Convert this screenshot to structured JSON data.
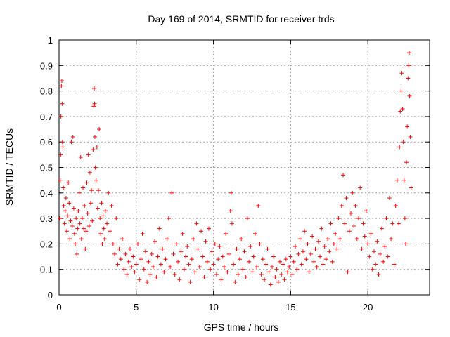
{
  "chart_data": {
    "type": "scatter",
    "title": "Day 169 of 2014, SRMTID for receiver trds",
    "xlabel": "GPS time / hours",
    "ylabel": "SRMTID / TECUs",
    "xlim": [
      0,
      24
    ],
    "ylim": [
      0,
      1
    ],
    "grid": true,
    "marker": "+",
    "color": "#ff0000",
    "x_ticks": [
      "0",
      "5",
      "10",
      "15",
      "20"
    ],
    "x_tick_values": [
      0,
      5,
      10,
      15,
      20
    ],
    "y_ticks": [
      "0",
      "0.1",
      "0.2",
      "0.3",
      "0.4",
      "0.5",
      "0.6",
      "0.7",
      "0.8",
      "0.9",
      "1"
    ],
    "y_tick_values": [
      0,
      0.1,
      0.2,
      0.3,
      0.4,
      0.5,
      0.6,
      0.7,
      0.8,
      0.9,
      1.0
    ],
    "series": [
      {
        "name": "SRMTID",
        "points": [
          [
            0.05,
            0.3
          ],
          [
            0.08,
            0.45
          ],
          [
            0.1,
            0.55
          ],
          [
            0.12,
            0.7
          ],
          [
            0.15,
            0.82
          ],
          [
            0.18,
            0.84
          ],
          [
            0.2,
            0.75
          ],
          [
            0.22,
            0.6
          ],
          [
            0.25,
            0.58
          ],
          [
            0.28,
            0.42
          ],
          [
            0.3,
            0.35
          ],
          [
            0.35,
            0.28
          ],
          [
            0.4,
            0.33
          ],
          [
            0.45,
            0.38
          ],
          [
            0.5,
            0.25
          ],
          [
            0.55,
            0.31
          ],
          [
            0.6,
            0.44
          ],
          [
            0.65,
            0.36
          ],
          [
            0.7,
            0.22
          ],
          [
            0.75,
            0.29
          ],
          [
            0.8,
            0.6
          ],
          [
            0.85,
            0.27
          ],
          [
            0.9,
            0.62
          ],
          [
            0.95,
            0.34
          ],
          [
            1.0,
            0.24
          ],
          [
            1.05,
            0.2
          ],
          [
            1.1,
            0.3
          ],
          [
            1.15,
            0.16
          ],
          [
            1.2,
            0.26
          ],
          [
            1.25,
            0.33
          ],
          [
            1.3,
            0.4
          ],
          [
            1.35,
            0.28
          ],
          [
            1.4,
            0.54
          ],
          [
            1.45,
            0.22
          ],
          [
            1.5,
            0.3
          ],
          [
            1.55,
            0.42
          ],
          [
            1.6,
            0.26
          ],
          [
            1.65,
            0.35
          ],
          [
            1.7,
            0.18
          ],
          [
            1.75,
            0.25
          ],
          [
            1.8,
            0.44
          ],
          [
            1.85,
            0.32
          ],
          [
            1.9,
            0.55
          ],
          [
            1.95,
            0.27
          ],
          [
            2.0,
            0.48
          ],
          [
            2.05,
            0.36
          ],
          [
            2.1,
            0.41
          ],
          [
            2.15,
            0.29
          ],
          [
            2.2,
            0.57
          ],
          [
            2.25,
            0.74
          ],
          [
            2.28,
            0.81
          ],
          [
            2.3,
            0.75
          ],
          [
            2.32,
            0.62
          ],
          [
            2.35,
            0.5
          ],
          [
            2.4,
            0.45
          ],
          [
            2.45,
            0.58
          ],
          [
            2.5,
            0.34
          ],
          [
            2.55,
            0.41
          ],
          [
            2.6,
            0.65
          ],
          [
            2.65,
            0.3
          ],
          [
            2.7,
            0.24
          ],
          [
            2.75,
            0.36
          ],
          [
            2.8,
            0.2
          ],
          [
            2.85,
            0.31
          ],
          [
            2.9,
            0.26
          ],
          [
            2.95,
            0.22
          ],
          [
            3.0,
            0.33
          ],
          [
            3.1,
            0.28
          ],
          [
            3.2,
            0.4
          ],
          [
            3.3,
            0.25
          ],
          [
            3.4,
            0.35
          ],
          [
            3.5,
            0.2
          ],
          [
            3.6,
            0.16
          ],
          [
            3.7,
            0.3
          ],
          [
            3.8,
            0.12
          ],
          [
            3.9,
            0.18
          ],
          [
            4.0,
            0.14
          ],
          [
            4.1,
            0.22
          ],
          [
            4.2,
            0.1
          ],
          [
            4.3,
            0.16
          ],
          [
            4.4,
            0.08
          ],
          [
            4.5,
            0.13
          ],
          [
            4.6,
            0.18
          ],
          [
            4.7,
            0.11
          ],
          [
            4.8,
            0.15
          ],
          [
            4.9,
            0.09
          ],
          [
            5.0,
            0.12
          ],
          [
            5.1,
            0.2
          ],
          [
            5.2,
            0.06
          ],
          [
            5.3,
            0.14
          ],
          [
            5.4,
            0.24
          ],
          [
            5.5,
            0.1
          ],
          [
            5.6,
            0.17
          ],
          [
            5.7,
            0.05
          ],
          [
            5.8,
            0.13
          ],
          [
            5.9,
            0.08
          ],
          [
            6.0,
            0.16
          ],
          [
            6.1,
            0.11
          ],
          [
            6.2,
            0.21
          ],
          [
            6.3,
            0.07
          ],
          [
            6.4,
            0.15
          ],
          [
            6.5,
            0.26
          ],
          [
            6.6,
            0.12
          ],
          [
            6.7,
            0.18
          ],
          [
            6.8,
            0.09
          ],
          [
            6.9,
            0.14
          ],
          [
            7.0,
            0.22
          ],
          [
            7.1,
            0.3
          ],
          [
            7.2,
            0.11
          ],
          [
            7.3,
            0.4
          ],
          [
            7.4,
            0.16
          ],
          [
            7.5,
            0.08
          ],
          [
            7.6,
            0.2
          ],
          [
            7.7,
            0.13
          ],
          [
            7.8,
            0.06
          ],
          [
            7.9,
            0.17
          ],
          [
            8.0,
            0.24
          ],
          [
            8.1,
            0.1
          ],
          [
            8.2,
            0.15
          ],
          [
            8.3,
            0.19
          ],
          [
            8.4,
            0.12
          ],
          [
            8.5,
            0.05
          ],
          [
            8.6,
            0.14
          ],
          [
            8.7,
            0.22
          ],
          [
            8.8,
            0.09
          ],
          [
            8.9,
            0.28
          ],
          [
            9.0,
            0.18
          ],
          [
            9.1,
            0.11
          ],
          [
            9.2,
            0.25
          ],
          [
            9.3,
            0.15
          ],
          [
            9.4,
            0.07
          ],
          [
            9.5,
            0.21
          ],
          [
            9.6,
            0.13
          ],
          [
            9.7,
            0.26
          ],
          [
            9.8,
            0.1
          ],
          [
            9.9,
            0.17
          ],
          [
            10.0,
            0.12
          ],
          [
            10.1,
            0.2
          ],
          [
            10.2,
            0.08
          ],
          [
            10.3,
            0.14
          ],
          [
            10.4,
            0.19
          ],
          [
            10.5,
            0.06
          ],
          [
            10.6,
            0.15
          ],
          [
            10.7,
            0.11
          ],
          [
            10.8,
            0.24
          ],
          [
            10.9,
            0.09
          ],
          [
            11.0,
            0.16
          ],
          [
            11.1,
            0.33
          ],
          [
            11.15,
            0.4
          ],
          [
            11.2,
            0.28
          ],
          [
            11.3,
            0.12
          ],
          [
            11.4,
            0.05
          ],
          [
            11.5,
            0.18
          ],
          [
            11.6,
            0.08
          ],
          [
            11.7,
            0.14
          ],
          [
            11.8,
            0.22
          ],
          [
            11.9,
            0.1
          ],
          [
            12.0,
            0.17
          ],
          [
            12.1,
            0.07
          ],
          [
            12.2,
            0.3
          ],
          [
            12.3,
            0.13
          ],
          [
            12.4,
            0.19
          ],
          [
            12.5,
            0.09
          ],
          [
            12.6,
            0.15
          ],
          [
            12.7,
            0.24
          ],
          [
            12.8,
            0.11
          ],
          [
            12.9,
            0.35
          ],
          [
            13.0,
            0.2
          ],
          [
            13.1,
            0.08
          ],
          [
            13.2,
            0.14
          ],
          [
            13.3,
            0.06
          ],
          [
            13.4,
            0.12
          ],
          [
            13.5,
            0.18
          ],
          [
            13.6,
            0.09
          ],
          [
            13.7,
            0.04
          ],
          [
            13.8,
            0.11
          ],
          [
            13.9,
            0.15
          ],
          [
            14.0,
            0.07
          ],
          [
            14.1,
            0.1
          ],
          [
            14.2,
            0.05
          ],
          [
            14.3,
            0.13
          ],
          [
            14.4,
            0.08
          ],
          [
            14.5,
            0.12
          ],
          [
            14.6,
            0.06
          ],
          [
            14.7,
            0.14
          ],
          [
            14.8,
            0.09
          ],
          [
            14.9,
            0.11
          ],
          [
            15.0,
            0.15
          ],
          [
            15.1,
            0.08
          ],
          [
            15.2,
            0.13
          ],
          [
            15.3,
            0.19
          ],
          [
            15.4,
            0.1
          ],
          [
            15.5,
            0.16
          ],
          [
            15.6,
            0.22
          ],
          [
            15.7,
            0.12
          ],
          [
            15.8,
            0.17
          ],
          [
            15.9,
            0.25
          ],
          [
            16.0,
            0.14
          ],
          [
            16.1,
            0.2
          ],
          [
            16.2,
            0.09
          ],
          [
            16.3,
            0.16
          ],
          [
            16.4,
            0.23
          ],
          [
            16.5,
            0.13
          ],
          [
            16.6,
            0.18
          ],
          [
            16.7,
            0.11
          ],
          [
            16.8,
            0.21
          ],
          [
            16.9,
            0.15
          ],
          [
            17.0,
            0.26
          ],
          [
            17.1,
            0.12
          ],
          [
            17.2,
            0.19
          ],
          [
            17.3,
            0.14
          ],
          [
            17.4,
            0.22
          ],
          [
            17.5,
            0.17
          ],
          [
            17.6,
            0.28
          ],
          [
            17.7,
            0.13
          ],
          [
            17.8,
            0.2
          ],
          [
            17.9,
            0.24
          ],
          [
            18.0,
            0.18
          ],
          [
            18.1,
            0.3
          ],
          [
            18.2,
            0.22
          ],
          [
            18.3,
            0.35
          ],
          [
            18.4,
            0.47
          ],
          [
            18.5,
            0.28
          ],
          [
            18.6,
            0.38
          ],
          [
            18.7,
            0.09
          ],
          [
            18.8,
            0.25
          ],
          [
            18.9,
            0.32
          ],
          [
            19.0,
            0.4
          ],
          [
            19.1,
            0.27
          ],
          [
            19.2,
            0.35
          ],
          [
            19.3,
            0.22
          ],
          [
            19.4,
            0.3
          ],
          [
            19.5,
            0.42
          ],
          [
            19.6,
            0.18
          ],
          [
            19.7,
            0.28
          ],
          [
            19.8,
            0.23
          ],
          [
            19.9,
            0.33
          ],
          [
            20.0,
            0.2
          ],
          [
            20.1,
            0.15
          ],
          [
            20.2,
            0.24
          ],
          [
            20.3,
            0.1
          ],
          [
            20.4,
            0.17
          ],
          [
            20.5,
            0.12
          ],
          [
            20.6,
            0.21
          ],
          [
            20.7,
            0.08
          ],
          [
            20.8,
            0.16
          ],
          [
            20.9,
            0.26
          ],
          [
            21.0,
            0.13
          ],
          [
            21.1,
            0.19
          ],
          [
            21.2,
            0.3
          ],
          [
            21.3,
            0.15
          ],
          [
            21.4,
            0.38
          ],
          [
            21.5,
            0.22
          ],
          [
            21.6,
            0.28
          ],
          [
            21.7,
            0.12
          ],
          [
            21.8,
            0.35
          ],
          [
            21.9,
            0.45
          ],
          [
            22.0,
            0.28
          ],
          [
            22.05,
            0.58
          ],
          [
            22.1,
            0.72
          ],
          [
            22.15,
            0.8
          ],
          [
            22.2,
            0.87
          ],
          [
            22.25,
            0.73
          ],
          [
            22.3,
            0.6
          ],
          [
            22.35,
            0.45
          ],
          [
            22.4,
            0.3
          ],
          [
            22.45,
            0.2
          ],
          [
            22.5,
            0.52
          ],
          [
            22.55,
            0.66
          ],
          [
            22.6,
            0.85
          ],
          [
            22.65,
            0.9
          ],
          [
            22.68,
            0.95
          ],
          [
            22.7,
            0.78
          ],
          [
            22.75,
            0.62
          ],
          [
            22.8,
            0.42
          ]
        ]
      }
    ]
  }
}
